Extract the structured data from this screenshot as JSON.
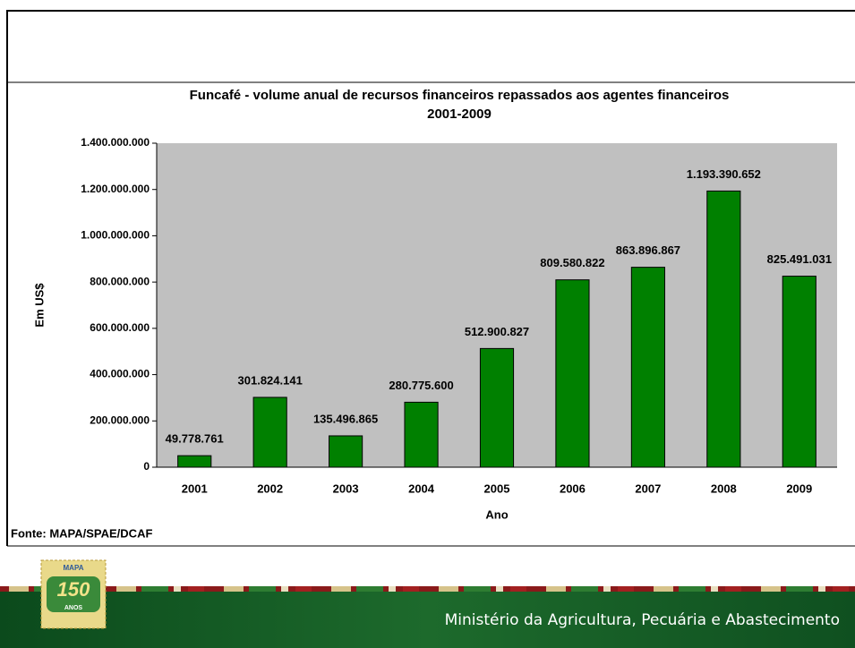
{
  "chart_data": {
    "type": "bar",
    "title": "Funcafé - volume anual de recursos financeiros repassados aos agentes financeiros",
    "subtitle": "2001-2009",
    "x_label": "Ano",
    "y_label": "Em US$",
    "source": "Fonte: MAPA/SPAE/DCAF",
    "categories": [
      "2001",
      "2002",
      "2003",
      "2004",
      "2005",
      "2006",
      "2007",
      "2008",
      "2009"
    ],
    "values": [
      49778761,
      301824141,
      135496865,
      280775600,
      512900827,
      809580822,
      863896867,
      1193390652,
      825491031
    ],
    "value_labels": [
      "49.778.761",
      "301.824.141",
      "135.496.865",
      "280.775.600",
      "512.900.827",
      "809.580.822",
      "863.896.867",
      "1.193.390.652",
      "825.491.031"
    ],
    "color": "#008000",
    "plot_background": "#c0c0c0",
    "ylim": [
      0,
      1400000000
    ],
    "yticks": [
      0,
      {
        "value": 200000000,
        "label": "200.000.000"
      },
      {
        "value": 400000000,
        "label": "400.000.000"
      },
      {
        "value": 600000000,
        "label": "600.000.000"
      },
      {
        "value": 800000000,
        "label": "800.000.000"
      },
      {
        "value": 1000000000,
        "label": "1.000.000.000"
      },
      {
        "value": 1200000000,
        "label": "1.200.000.000"
      },
      {
        "value": 1400000000,
        "label": "1.400.000.000"
      }
    ],
    "grid": false
  },
  "footer": {
    "ministry": "Ministério da Agricultura, Pecuária e Abastecimento",
    "logo_top": "MAPA",
    "logo_number": "150",
    "logo_bottom": "ANOS"
  }
}
